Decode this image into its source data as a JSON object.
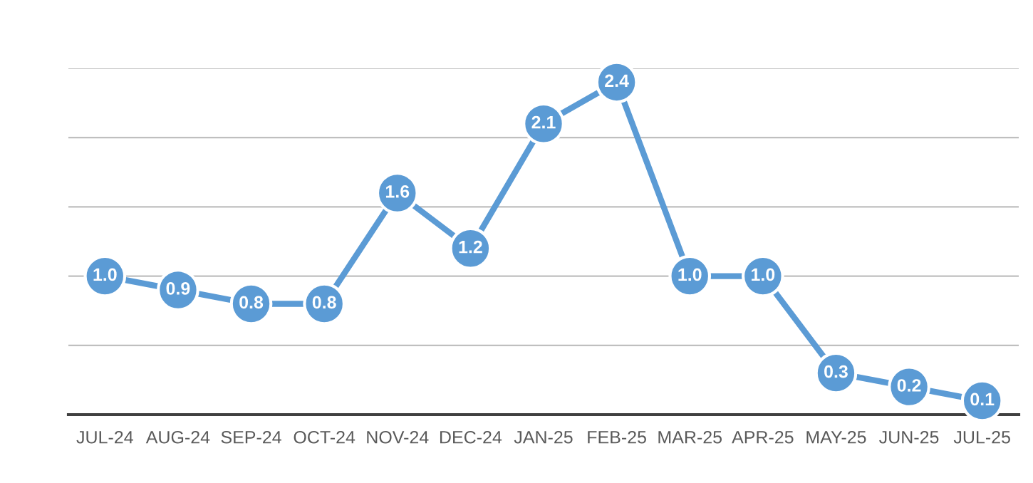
{
  "chart_data": {
    "type": "line",
    "categories": [
      "JUL-24",
      "AUG-24",
      "SEP-24",
      "OCT-24",
      "NOV-24",
      "DEC-24",
      "JAN-25",
      "FEB-25",
      "MAR-25",
      "APR-25",
      "MAY-25",
      "JUN-25",
      "JUL-25"
    ],
    "series": [
      {
        "color": "#5b9bd5",
        "values": [
          1.0,
          0.9,
          0.8,
          0.8,
          1.6,
          1.2,
          2.1,
          2.4,
          1.0,
          1.0,
          0.3,
          0.2,
          0.1
        ],
        "value_labels": [
          "1.0",
          "0.9",
          "0.8",
          "0.8",
          "1.6",
          "1.2",
          "2.1",
          "2.4",
          "1.0",
          "1.0",
          "0.3",
          "0.2",
          "0.1"
        ]
      }
    ],
    "ylim": [
      0,
      2.5
    ],
    "yticks": [
      {
        "value": 0,
        "label": null
      },
      {
        "value": 0.5,
        "label": null
      },
      {
        "value": 1.0,
        "label": null
      },
      {
        "value": 1.5,
        "label": null
      },
      {
        "value": 2.0,
        "label": null
      },
      {
        "value": 2.5,
        "label": null
      }
    ],
    "tick_labels": "x",
    "grid": "y",
    "marker": "circle",
    "line_style": "solid"
  }
}
